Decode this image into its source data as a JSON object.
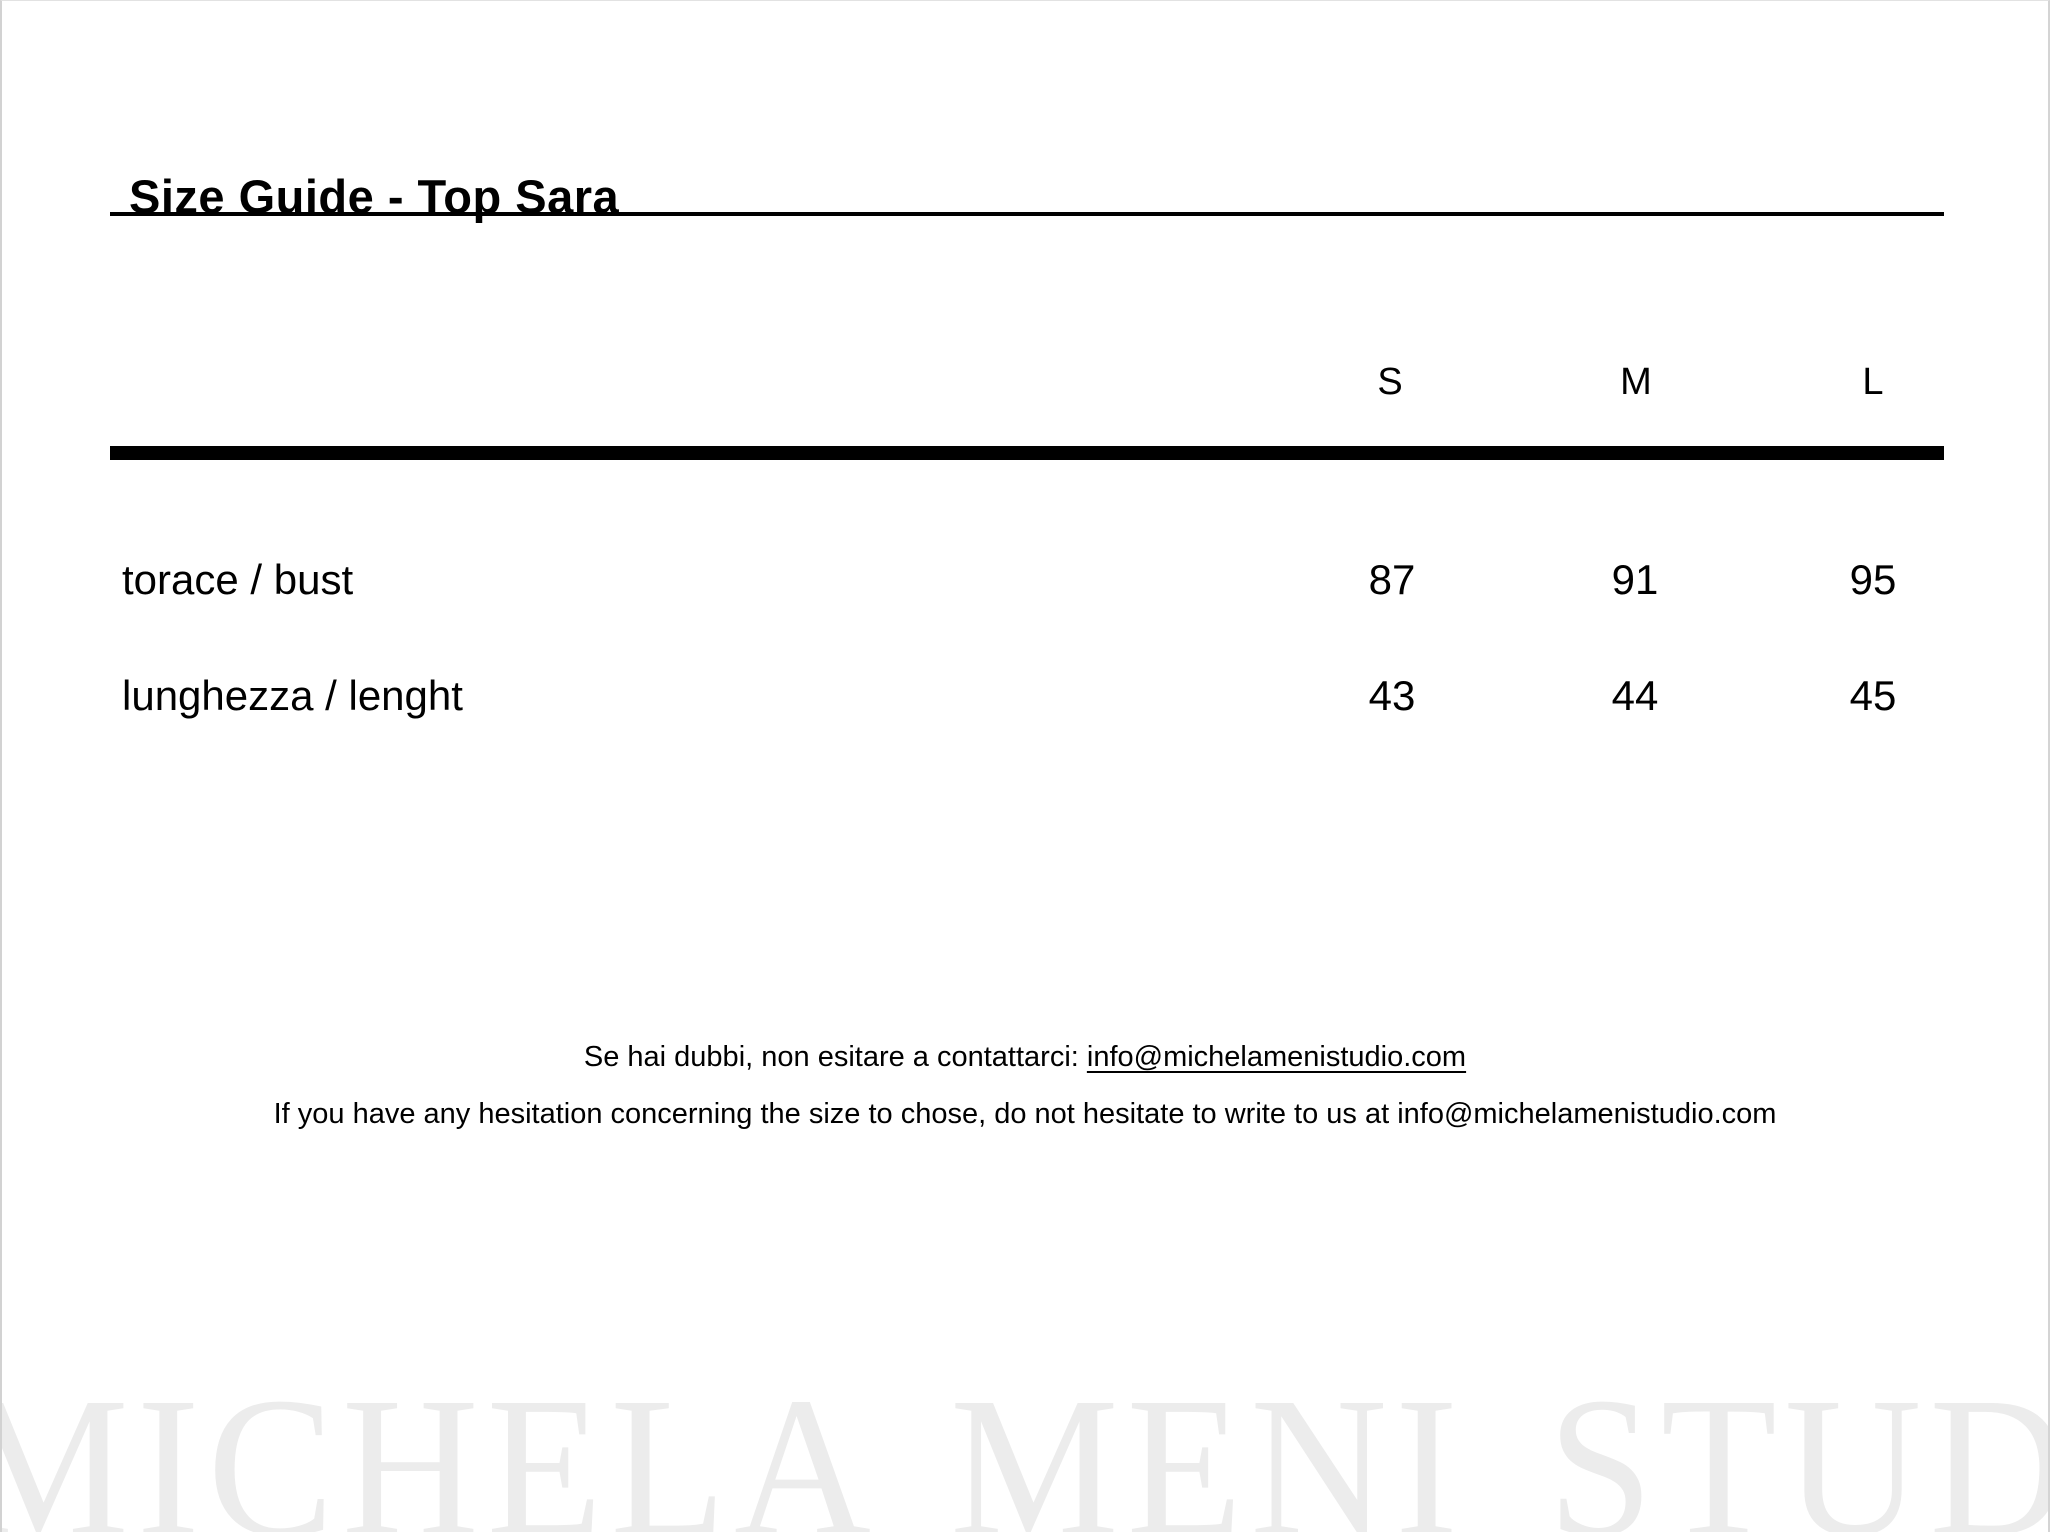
{
  "page": {
    "title": "Size Guide - Top Sara"
  },
  "size_table": {
    "columns": [
      "S",
      "M",
      "L"
    ],
    "rows": [
      {
        "label": "torace / bust",
        "values": [
          "87",
          "91",
          "95"
        ]
      },
      {
        "label": "lunghezza / lenght",
        "values": [
          "43",
          "44",
          "45"
        ]
      }
    ]
  },
  "contact": {
    "line1_prefix": "Se hai dubbi, non esitare a contattarci: ",
    "line1_email": "info@michelamenistudio.com",
    "line2": "If you have any hesitation concerning the size to chose, do not hesitate to write to us at info@michelamenistudio.com"
  },
  "watermark": {
    "text": "MICHELA MENI STUDIO",
    "color": "#ececec"
  },
  "colors": {
    "text": "#000000",
    "rule": "#000000",
    "page_border": "#d2d2d2",
    "watermark": "#ececec"
  }
}
